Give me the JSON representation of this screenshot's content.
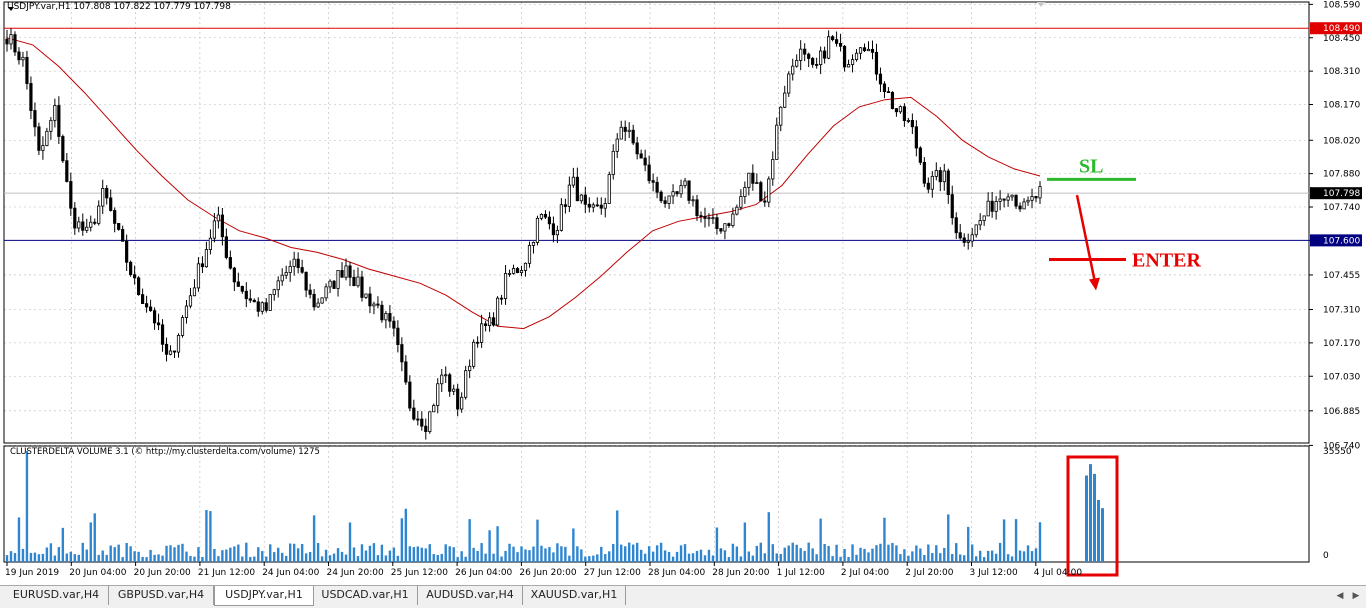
{
  "symbol_caption": "USDJPY.var,H1  107.808 107.822 107.779 107.798",
  "indicator_caption": "CLUSTERDELTA VOLUME 3.1 (© http://my.clusterdelta.com/volume) 1275",
  "tabs": [
    {
      "label": "EURUSD.var,H4",
      "active": false
    },
    {
      "label": "GBPUSD.var,H4",
      "active": false
    },
    {
      "label": "USDJPY.var,H1",
      "active": true
    },
    {
      "label": "USDCAD.var,H1",
      "active": false
    },
    {
      "label": "AUDUSD.var,H4",
      "active": false
    },
    {
      "label": "XAUUSD.var,H1",
      "active": false
    }
  ],
  "colors": {
    "up_candle": "#000000",
    "down_candle": "#000000",
    "moving_average": "#c00000",
    "resistance_line": "#e00000",
    "support_line": "#000080",
    "current_price_line": "#c0c0c0",
    "volume_bars": "#2f86d0",
    "grid": "#b8b8b8",
    "sl_marker": "#2eb82e",
    "enter_marker": "#e60000",
    "highlight_box": "#e60000"
  },
  "chart_data": {
    "type": "candlestick",
    "symbol": "USDJPY.var",
    "timeframe": "H1",
    "price_axis": {
      "ylim": [
        106.75,
        108.6
      ],
      "ticks": [
        "108.590",
        "108.450",
        "108.310",
        "108.170",
        "108.020",
        "107.880",
        "107.740",
        "107.600",
        "107.455",
        "107.310",
        "107.170",
        "107.030",
        "106.885",
        "106.740"
      ]
    },
    "time_axis": {
      "labels": [
        "19 Jun 2019",
        "20 Jun 04:00",
        "20 Jun 20:00",
        "21 Jun 12:00",
        "24 Jun 04:00",
        "24 Jun 20:00",
        "25 Jun 12:00",
        "26 Jun 04:00",
        "26 Jun 20:00",
        "27 Jun 12:00",
        "28 Jun 04:00",
        "28 Jun 20:00",
        "1 Jul 12:00",
        "2 Jul 04:00",
        "2 Jul 20:00",
        "3 Jul 12:00",
        "4 Jul 04:00"
      ]
    },
    "grid": true,
    "price_labels": [
      {
        "value": 108.49,
        "text": "108.490",
        "kind": "resistance"
      },
      {
        "value": 107.798,
        "text": "107.798",
        "kind": "current"
      },
      {
        "value": 107.6,
        "text": "107.600",
        "kind": "support"
      }
    ],
    "series": [
      {
        "name": "USDJPY.var,H1",
        "type": "candlestick",
        "close_path": [
          108.46,
          108.35,
          107.95,
          108.15,
          107.7,
          107.62,
          107.8,
          107.6,
          107.4,
          107.3,
          107.08,
          107.3,
          107.5,
          107.7,
          107.45,
          107.35,
          107.3,
          107.45,
          107.5,
          107.33,
          107.4,
          107.5,
          107.38,
          107.32,
          107.2,
          106.9,
          106.83,
          107.05,
          106.9,
          107.2,
          107.25,
          107.45,
          107.5,
          107.7,
          107.65,
          107.85,
          107.7,
          107.75,
          108.1,
          107.98,
          107.83,
          107.75,
          107.82,
          107.7,
          107.65,
          107.7,
          107.87,
          107.77,
          108.2,
          108.4,
          108.3,
          108.45,
          108.35,
          108.45,
          108.3,
          108.15,
          108.08,
          107.83,
          107.88,
          107.6,
          107.65,
          107.75,
          107.82,
          107.73,
          107.8
        ],
        "volatility": 0.045
      },
      {
        "name": "Moving Average",
        "type": "line",
        "values": [
          108.45,
          108.42,
          108.33,
          108.22,
          108.1,
          107.98,
          107.87,
          107.77,
          107.7,
          107.64,
          107.61,
          107.57,
          107.55,
          107.52,
          107.48,
          107.45,
          107.42,
          107.37,
          107.3,
          107.24,
          107.23,
          107.28,
          107.36,
          107.45,
          107.55,
          107.64,
          107.68,
          107.7,
          107.72,
          107.75,
          107.83,
          107.96,
          108.08,
          108.16,
          108.19,
          108.2,
          108.12,
          108.02,
          107.95,
          107.9,
          107.87
        ]
      }
    ],
    "annotations": [
      {
        "kind": "text",
        "text": "SL",
        "price": 107.86
      },
      {
        "kind": "text",
        "text": "ENTER",
        "price": 107.52
      },
      {
        "kind": "arrow",
        "direction": "down",
        "from_price": 107.79,
        "to_price": 107.39
      }
    ],
    "indicator": {
      "name": "CLUSTERDELTA VOLUME 3.1",
      "type": "bar",
      "ylim": [
        0,
        35550
      ],
      "ticks": [
        "35550",
        "0"
      ],
      "highlight_values": [
        26500,
        30000,
        27000,
        19000,
        16500
      ]
    }
  }
}
